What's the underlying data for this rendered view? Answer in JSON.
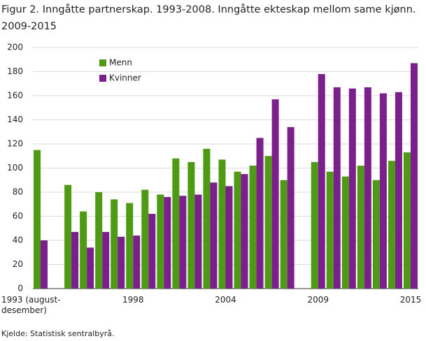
{
  "chart_data": {
    "type": "bar",
    "title": "Figur 2. Inngåtte partnerskap. 1993-2008. Inngåtte ekteskap mellom same kjønn.",
    "subtitle": "2009-2015",
    "source": "Kjelde: Statistisk sentralbyrå.",
    "categories": [
      "1993 (august-desember)",
      null,
      null,
      null,
      null,
      null,
      "1998",
      null,
      null,
      null,
      null,
      null,
      "2004",
      null,
      null,
      null,
      null,
      null,
      "2009",
      null,
      null,
      null,
      null,
      null,
      "2015"
    ],
    "series": [
      {
        "name": "Menn",
        "color": "#4e9a14",
        "values": [
          115,
          null,
          86,
          64,
          80,
          74,
          71,
          82,
          78,
          108,
          105,
          116,
          107,
          97,
          102,
          110,
          90,
          null,
          105,
          97,
          93,
          102,
          90,
          106,
          113
        ]
      },
      {
        "name": "Kvinner",
        "color": "#7b1f8c",
        "values": [
          40,
          null,
          47,
          34,
          47,
          43,
          44,
          62,
          76,
          77,
          78,
          88,
          85,
          95,
          125,
          157,
          134,
          null,
          178,
          167,
          166,
          167,
          162,
          163,
          187
        ]
      }
    ],
    "ylim": [
      0,
      200
    ],
    "yticks": [
      0,
      20,
      40,
      60,
      80,
      100,
      120,
      140,
      160,
      180,
      200
    ],
    "grid": true,
    "legend": "upper-left"
  }
}
